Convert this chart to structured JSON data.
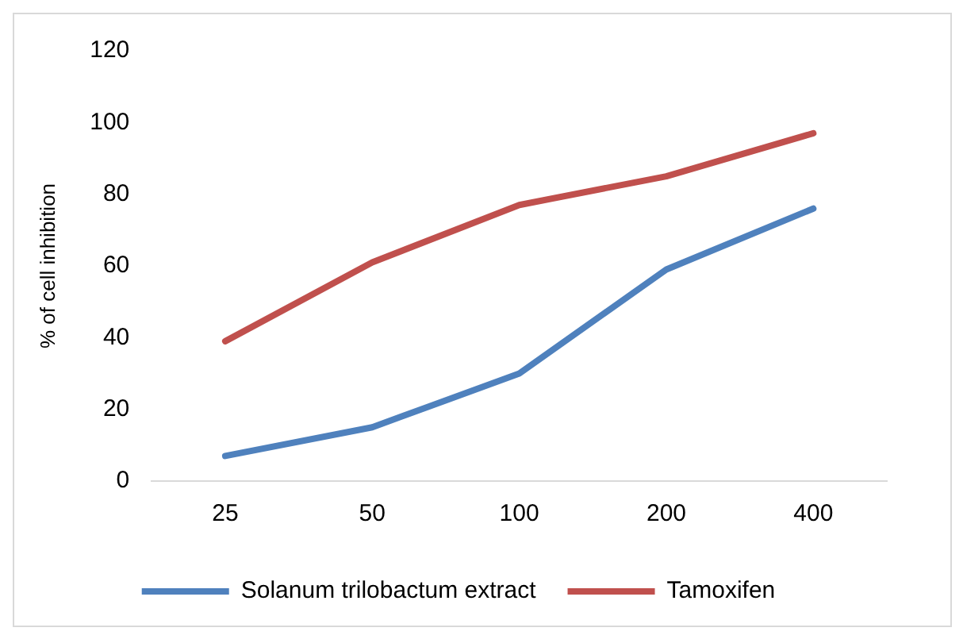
{
  "chart_data": {
    "type": "line",
    "ylabel": "% of cell inhibition",
    "categories": [
      "25",
      "50",
      "100",
      "200",
      "400"
    ],
    "ylim": [
      0,
      120
    ],
    "yticks": [
      0,
      20,
      40,
      60,
      80,
      100,
      120
    ],
    "grid": false,
    "legend": "bottom",
    "marker": "none",
    "line_style": "solid",
    "series": [
      {
        "name": "Solanum trilobactum extract",
        "color": "#4f81bd",
        "values": [
          7,
          15,
          30,
          59,
          76
        ]
      },
      {
        "name": "Tamoxifen",
        "color": "#c0504d",
        "values": [
          39,
          61,
          77,
          85,
          97
        ]
      }
    ]
  }
}
